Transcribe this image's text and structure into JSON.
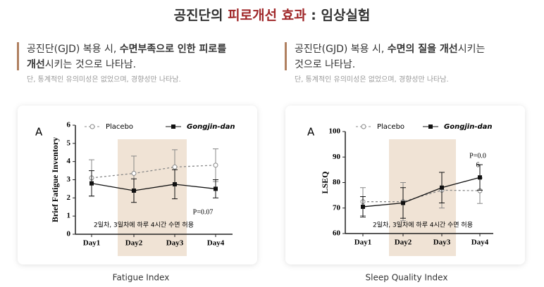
{
  "header": {
    "title_parts": [
      "공진단의 ",
      "피로개선 효과",
      " : 임상실험"
    ]
  },
  "columns": [
    {
      "lines": [
        [
          "공진단(GJD) 복용 시, ",
          "수면부족으로 인한 피로를"
        ],
        [
          "개선",
          "시키는 것으로 나타남."
        ]
      ],
      "note": "단, 통계적인 유의미성은 없었으며, 경향성만 나타남."
    },
    {
      "lines": [
        [
          "공진단(GJD) 복용 시, ",
          "수면의 질을 개선",
          "시키는"
        ],
        [
          "것으로 나타남."
        ]
      ],
      "note": "단, 통계적인 유의미성은 없었으며, 경향성만 나타남."
    }
  ],
  "chart_data": [
    {
      "type": "line",
      "panel_label": "A",
      "ylabel": "Brief Fatigue Inventory",
      "caption": "Fatigue Index",
      "categories": [
        "Day1",
        "Day2",
        "Day3",
        "Day4"
      ],
      "series": [
        {
          "name": "Placebo",
          "color": "#888888",
          "line_style": "dashed",
          "marker": "circle",
          "values": [
            3.1,
            3.35,
            3.7,
            3.8
          ],
          "errors": [
            1.0,
            0.95,
            0.95,
            0.9
          ]
        },
        {
          "name": "Gongjin-dan",
          "color": "#111111",
          "line_style": "solid",
          "marker": "square",
          "values": [
            2.8,
            2.4,
            2.75,
            2.5
          ],
          "errors": [
            0.7,
            0.65,
            0.8,
            0.5
          ]
        }
      ],
      "ylim": [
        0,
        6
      ],
      "yticks": [
        0,
        1,
        2,
        3,
        4,
        5,
        6
      ],
      "annotations": [
        [
          "P=0.07"
        ],
        [
          "2일차, 3일차에 하루 4시간 수면 허용"
        ]
      ]
    },
    {
      "type": "line",
      "panel_label": "A",
      "ylabel": "LSEQ",
      "caption": "Sleep Quality Index",
      "categories": [
        "Day1",
        "Day2",
        "Day3",
        "Day4"
      ],
      "series": [
        {
          "name": "Placebo",
          "color": "#888888",
          "line_style": "dashed",
          "marker": "circle",
          "values": [
            72.5,
            72.5,
            77,
            76.8
          ],
          "errors": [
            5.5,
            7.5,
            7,
            5
          ]
        },
        {
          "name": "Gongjin-dan",
          "color": "#111111",
          "line_style": "solid",
          "marker": "square",
          "values": [
            70.5,
            72,
            78,
            82
          ],
          "errors": [
            4,
            6,
            6,
            5
          ]
        }
      ],
      "ylim": [
        60,
        100
      ],
      "yticks": [
        60,
        70,
        80,
        90,
        100
      ],
      "annotations": [
        [
          "P=0.0",
          "6"
        ],
        [
          "2일차, 3일차에 하루 4시간 수면 허용"
        ]
      ]
    }
  ]
}
